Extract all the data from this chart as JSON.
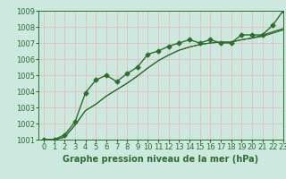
{
  "xlabel": "Graphe pression niveau de la mer (hPa)",
  "xlim": [
    -0.5,
    23
  ],
  "ylim": [
    1001,
    1009
  ],
  "yticks": [
    1001,
    1002,
    1003,
    1004,
    1005,
    1006,
    1007,
    1008,
    1009
  ],
  "xticks": [
    0,
    1,
    2,
    3,
    4,
    5,
    6,
    7,
    8,
    9,
    10,
    11,
    12,
    13,
    14,
    15,
    16,
    17,
    18,
    19,
    20,
    21,
    22,
    23
  ],
  "bg_color": "#cce8df",
  "grid_color": "#e8b8b8",
  "line_color": "#2d6e2d",
  "series_main": [
    1001.0,
    1001.0,
    1001.3,
    1002.1,
    1003.9,
    1004.7,
    1005.0,
    1004.6,
    1005.1,
    1005.5,
    1006.3,
    1006.5,
    1006.8,
    1007.0,
    1007.2,
    1007.0,
    1007.2,
    1007.0,
    1007.0,
    1007.5,
    1007.5,
    1007.5,
    1008.1,
    1009.0
  ],
  "series_smooth": [
    [
      1001.0,
      1001.0,
      1001.15,
      1001.9,
      1002.8,
      1003.2,
      1003.7,
      1004.1,
      1004.5,
      1004.95,
      1005.45,
      1005.9,
      1006.25,
      1006.55,
      1006.75,
      1006.9,
      1007.0,
      1007.05,
      1007.05,
      1007.2,
      1007.3,
      1007.5,
      1007.7,
      1007.9
    ],
    [
      1001.0,
      1001.0,
      1001.15,
      1001.9,
      1002.8,
      1003.2,
      1003.7,
      1004.1,
      1004.5,
      1004.95,
      1005.45,
      1005.9,
      1006.25,
      1006.55,
      1006.75,
      1006.9,
      1007.0,
      1007.05,
      1007.05,
      1007.2,
      1007.3,
      1007.45,
      1007.65,
      1007.85
    ],
    [
      1001.0,
      1001.0,
      1001.15,
      1001.9,
      1002.8,
      1003.2,
      1003.7,
      1004.1,
      1004.5,
      1004.95,
      1005.45,
      1005.9,
      1006.25,
      1006.55,
      1006.75,
      1006.9,
      1007.0,
      1007.05,
      1007.05,
      1007.2,
      1007.3,
      1007.4,
      1007.6,
      1007.8
    ]
  ],
  "fontsize_xlabel": 7,
  "fontsize_tick": 6,
  "fig_width": 3.2,
  "fig_height": 2.0,
  "dpi": 100
}
